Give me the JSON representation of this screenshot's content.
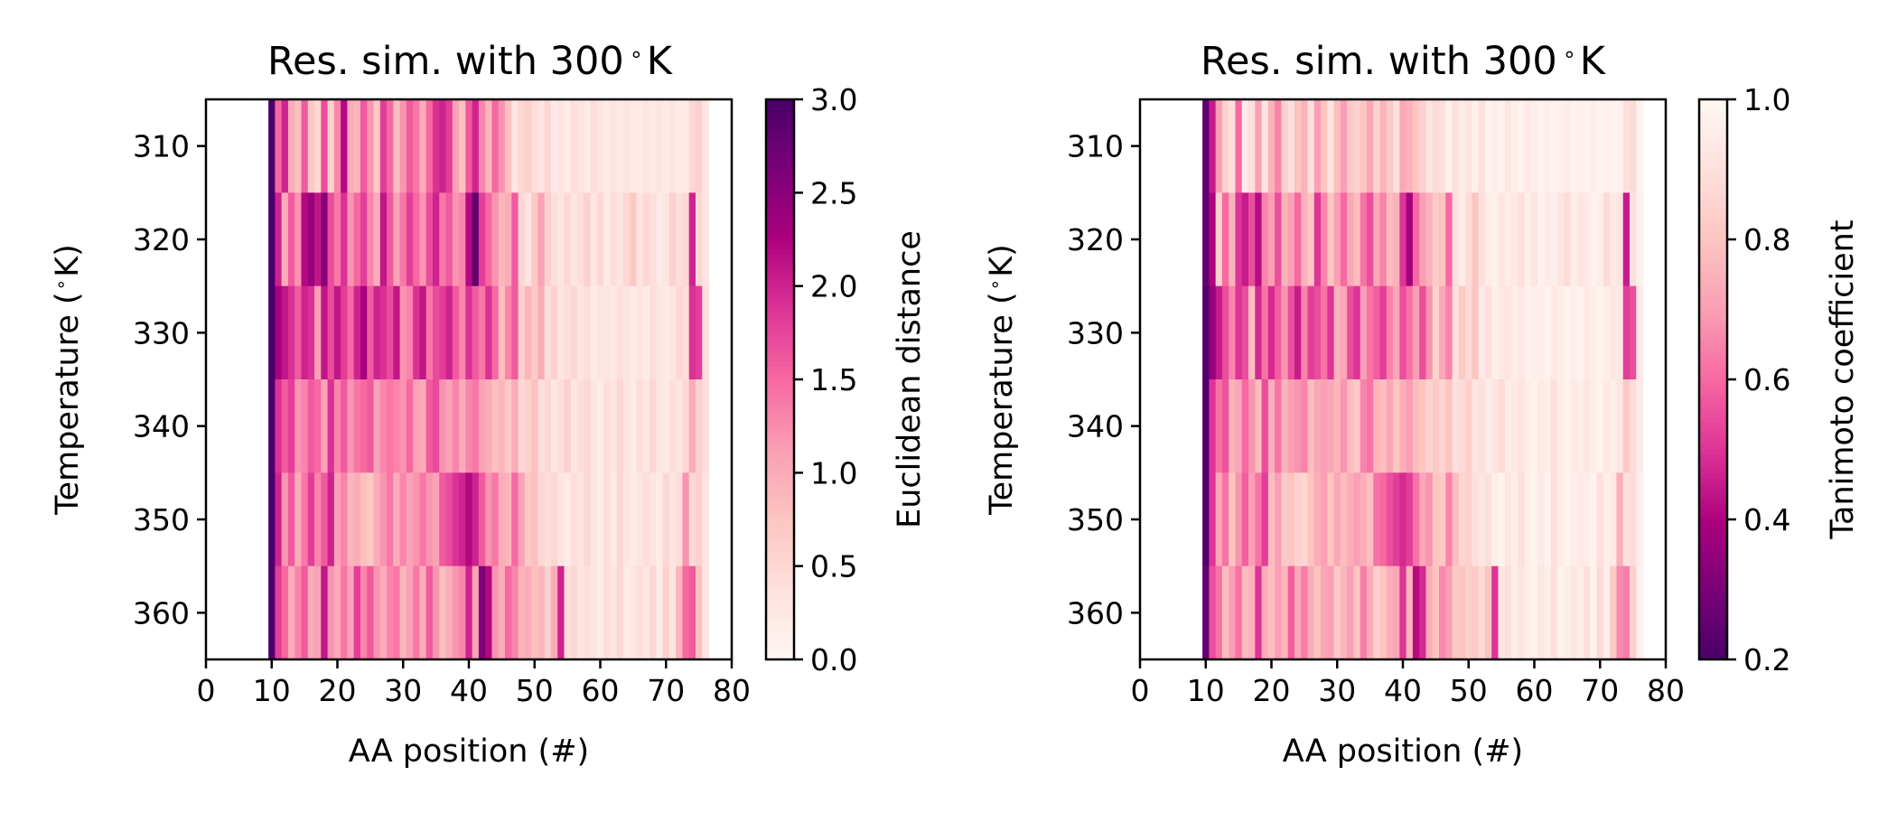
{
  "chart_data": [
    {
      "type": "heatmap",
      "title": "Res. sim. with 300$^\\circ$K",
      "title_text": "Res. sim. with 300",
      "title_unit": "K",
      "xlabel": "AA position (#)",
      "ylabel": "Temperature (",
      "ylabel_unit": "K)",
      "xlim": [
        0,
        80
      ],
      "x_ticks": [
        "0",
        "10",
        "20",
        "30",
        "40",
        "50",
        "60",
        "70",
        "80"
      ],
      "y_ticks": [
        "310",
        "320",
        "330",
        "340",
        "350",
        "360"
      ],
      "temperatures": [
        310,
        320,
        330,
        340,
        350,
        360
      ],
      "x_start": 10,
      "x_end": 76,
      "colorbar": {
        "label": "Euclidean distance",
        "range": [
          0,
          3
        ],
        "ticks": [
          "0.0",
          "0.5",
          "1.0",
          "1.5",
          "2.0",
          "2.5",
          "3.0"
        ],
        "colormap": "RdPu"
      },
      "values": [
        [
          3.0,
          1.5,
          2.0,
          1.0,
          0.8,
          1.6,
          0.7,
          0.5,
          1.7,
          0.6,
          1.3,
          2.2,
          1.0,
          0.9,
          1.6,
          1.2,
          0.7,
          1.8,
          1.5,
          0.8,
          1.2,
          1.6,
          1.4,
          1.0,
          1.5,
          1.9,
          2.0,
          1.8,
          1.1,
          0.8,
          1.6,
          2.0,
          1.3,
          0.9,
          1.5,
          1.2,
          0.8,
          0.3,
          0.5,
          0.6,
          0.4,
          0.3,
          0.5,
          0.2,
          0.3,
          0.2,
          0.4,
          0.3,
          0.2,
          0.4,
          0.3,
          0.2,
          0.3,
          0.2,
          0.3,
          0.2,
          0.2,
          0.3,
          0.2,
          0.3,
          0.2,
          0.3,
          0.2,
          0.2,
          0.5,
          0.6,
          0.3
        ],
        [
          3.0,
          2.0,
          1.0,
          1.6,
          1.2,
          2.2,
          2.4,
          2.1,
          2.5,
          1.7,
          1.4,
          1.9,
          1.2,
          1.5,
          1.8,
          1.3,
          1.0,
          2.1,
          1.6,
          1.1,
          1.4,
          1.8,
          1.5,
          1.2,
          1.7,
          2.0,
          1.4,
          1.6,
          1.2,
          1.3,
          2.2,
          2.8,
          1.8,
          1.5,
          1.2,
          0.9,
          1.0,
          1.6,
          0.5,
          0.3,
          0.7,
          1.1,
          0.6,
          0.4,
          0.3,
          0.5,
          0.3,
          0.4,
          0.6,
          0.3,
          0.5,
          0.2,
          0.4,
          0.3,
          0.5,
          0.7,
          0.3,
          0.5,
          0.4,
          0.2,
          0.3,
          0.6,
          0.4,
          0.5,
          2.0,
          0.5,
          0.3
        ],
        [
          3.0,
          2.3,
          2.1,
          1.9,
          1.6,
          2.0,
          1.9,
          1.1,
          2.1,
          1.7,
          2.1,
          1.8,
          1.5,
          2.0,
          2.3,
          1.6,
          2.0,
          1.9,
          1.7,
          2.1,
          1.2,
          1.3,
          1.9,
          2.1,
          1.4,
          1.7,
          1.8,
          2.0,
          1.6,
          1.3,
          1.9,
          1.6,
          1.4,
          1.9,
          1.5,
          0.8,
          1.3,
          1.6,
          0.6,
          0.9,
          0.7,
          1.0,
          0.4,
          0.6,
          0.3,
          0.4,
          0.5,
          0.3,
          0.4,
          0.2,
          0.3,
          0.3,
          0.2,
          0.4,
          0.3,
          0.2,
          0.3,
          0.2,
          0.4,
          0.3,
          0.2,
          0.3,
          0.5,
          0.4,
          1.9,
          1.8,
          0.4
        ],
        [
          3.0,
          1.9,
          1.6,
          1.8,
          1.2,
          1.3,
          1.6,
          1.5,
          1.1,
          1.9,
          1.3,
          1.6,
          1.2,
          1.4,
          1.5,
          1.6,
          1.1,
          1.3,
          1.4,
          1.3,
          1.2,
          1.5,
          1.1,
          1.0,
          1.6,
          1.7,
          1.2,
          1.1,
          1.3,
          1.0,
          1.3,
          1.4,
          1.1,
          1.0,
          0.8,
          0.9,
          0.7,
          1.0,
          0.5,
          0.6,
          0.8,
          0.4,
          0.5,
          0.3,
          0.4,
          0.6,
          0.3,
          0.4,
          0.5,
          0.3,
          0.2,
          0.4,
          0.3,
          0.5,
          0.3,
          0.2,
          0.4,
          0.3,
          0.5,
          0.3,
          0.2,
          0.4,
          0.3,
          0.5,
          1.0,
          0.6,
          0.4
        ],
        [
          3.0,
          2.0,
          1.2,
          1.6,
          1.0,
          1.4,
          1.8,
          1.3,
          1.6,
          2.0,
          1.1,
          1.3,
          0.9,
          1.0,
          0.8,
          0.7,
          1.0,
          1.2,
          1.4,
          1.0,
          1.3,
          1.1,
          1.2,
          1.4,
          1.2,
          1.1,
          1.6,
          1.7,
          1.9,
          2.0,
          2.2,
          2.0,
          1.6,
          1.2,
          1.4,
          1.0,
          0.9,
          1.5,
          1.1,
          0.7,
          0.8,
          0.5,
          0.4,
          0.5,
          0.3,
          0.2,
          0.4,
          0.3,
          0.5,
          0.3,
          0.2,
          0.4,
          0.2,
          0.5,
          0.3,
          0.2,
          0.3,
          0.4,
          0.3,
          0.2,
          0.5,
          0.3,
          0.4,
          1.2,
          0.5,
          0.6,
          0.3
        ],
        [
          3.0,
          1.8,
          1.5,
          1.0,
          1.3,
          1.6,
          1.0,
          1.1,
          2.1,
          1.2,
          1.0,
          1.4,
          1.1,
          1.8,
          1.3,
          1.6,
          1.2,
          1.0,
          1.3,
          1.4,
          0.9,
          1.1,
          1.4,
          1.0,
          1.6,
          1.2,
          0.8,
          1.0,
          1.2,
          1.3,
          2.0,
          1.1,
          2.6,
          2.2,
          1.2,
          1.0,
          1.5,
          1.3,
          0.9,
          1.0,
          0.8,
          0.9,
          0.6,
          1.0,
          2.0,
          0.4,
          0.5,
          0.3,
          0.4,
          0.3,
          0.2,
          0.4,
          0.3,
          0.5,
          0.2,
          0.3,
          0.4,
          0.3,
          0.5,
          0.2,
          0.6,
          0.3,
          0.9,
          1.5,
          1.6,
          0.8,
          0.3
        ]
      ]
    },
    {
      "type": "heatmap",
      "title": "Res. sim. with 300$^\\circ$K",
      "title_text": "Res. sim. with 300",
      "title_unit": "K",
      "xlabel": "AA position (#)",
      "ylabel": "Temperature (",
      "ylabel_unit": "K)",
      "xlim": [
        0,
        80
      ],
      "x_ticks": [
        "0",
        "10",
        "20",
        "30",
        "40",
        "50",
        "60",
        "70",
        "80"
      ],
      "y_ticks": [
        "310",
        "320",
        "330",
        "340",
        "350",
        "360"
      ],
      "temperatures": [
        310,
        320,
        330,
        340,
        350,
        360
      ],
      "x_start": 10,
      "x_end": 76,
      "colorbar": {
        "label": "Tanimoto coefficient",
        "range": [
          0.2,
          1.0
        ],
        "ticks": [
          "0.2",
          "0.4",
          "0.6",
          "0.8",
          "1.0"
        ],
        "colormap": "RdPu_r"
      },
      "values": [
        [
          0.25,
          0.45,
          0.7,
          0.85,
          0.9,
          0.6,
          0.95,
          0.9,
          0.7,
          0.92,
          0.75,
          0.65,
          0.85,
          0.9,
          0.8,
          0.75,
          0.9,
          0.7,
          0.8,
          0.92,
          0.78,
          0.7,
          0.82,
          0.85,
          0.8,
          0.72,
          0.85,
          0.75,
          0.82,
          0.9,
          0.72,
          0.75,
          0.8,
          0.85,
          0.92,
          0.88,
          0.9,
          0.97,
          0.9,
          0.95,
          0.92,
          0.97,
          0.9,
          0.98,
          0.96,
          0.98,
          0.92,
          0.96,
          0.98,
          0.94,
          0.96,
          0.98,
          0.96,
          0.98,
          0.97,
          0.95,
          0.98,
          0.97,
          0.98,
          0.96,
          0.98,
          0.97,
          0.98,
          0.97,
          0.9,
          0.88,
          0.98
        ],
        [
          0.25,
          0.4,
          0.85,
          0.6,
          0.75,
          0.5,
          0.45,
          0.55,
          0.42,
          0.65,
          0.7,
          0.55,
          0.75,
          0.7,
          0.6,
          0.75,
          0.8,
          0.5,
          0.65,
          0.8,
          0.7,
          0.6,
          0.72,
          0.78,
          0.62,
          0.55,
          0.72,
          0.65,
          0.78,
          0.75,
          0.5,
          0.38,
          0.6,
          0.7,
          0.75,
          0.82,
          0.8,
          0.6,
          0.9,
          0.95,
          0.88,
          0.8,
          0.9,
          0.95,
          0.97,
          0.92,
          0.96,
          0.94,
          0.9,
          0.96,
          0.92,
          0.98,
          0.94,
          0.96,
          0.92,
          0.88,
          0.96,
          0.92,
          0.94,
          0.98,
          0.96,
          0.88,
          0.94,
          0.92,
          0.45,
          0.9,
          0.97
        ],
        [
          0.22,
          0.35,
          0.45,
          0.55,
          0.65,
          0.5,
          0.55,
          0.78,
          0.48,
          0.62,
          0.48,
          0.58,
          0.68,
          0.55,
          0.45,
          0.65,
          0.52,
          0.55,
          0.62,
          0.5,
          0.75,
          0.72,
          0.55,
          0.5,
          0.7,
          0.62,
          0.58,
          0.52,
          0.65,
          0.72,
          0.55,
          0.62,
          0.7,
          0.55,
          0.68,
          0.85,
          0.72,
          0.65,
          0.9,
          0.82,
          0.88,
          0.8,
          0.94,
          0.9,
          0.96,
          0.94,
          0.92,
          0.96,
          0.94,
          0.98,
          0.96,
          0.96,
          0.98,
          0.94,
          0.96,
          0.98,
          0.96,
          0.98,
          0.94,
          0.96,
          0.98,
          0.96,
          0.92,
          0.94,
          0.52,
          0.55,
          0.94
        ],
        [
          0.22,
          0.5,
          0.62,
          0.56,
          0.75,
          0.72,
          0.6,
          0.68,
          0.78,
          0.55,
          0.74,
          0.62,
          0.75,
          0.7,
          0.68,
          0.65,
          0.78,
          0.72,
          0.7,
          0.72,
          0.76,
          0.68,
          0.78,
          0.82,
          0.65,
          0.62,
          0.76,
          0.78,
          0.72,
          0.8,
          0.74,
          0.7,
          0.78,
          0.8,
          0.85,
          0.82,
          0.86,
          0.8,
          0.9,
          0.88,
          0.84,
          0.92,
          0.9,
          0.95,
          0.92,
          0.88,
          0.96,
          0.94,
          0.92,
          0.96,
          0.98,
          0.94,
          0.96,
          0.9,
          0.96,
          0.98,
          0.94,
          0.96,
          0.92,
          0.96,
          0.98,
          0.94,
          0.96,
          0.92,
          0.82,
          0.88,
          0.94
        ],
        [
          0.22,
          0.5,
          0.72,
          0.62,
          0.8,
          0.68,
          0.58,
          0.7,
          0.62,
          0.52,
          0.78,
          0.7,
          0.82,
          0.8,
          0.85,
          0.86,
          0.8,
          0.74,
          0.7,
          0.8,
          0.72,
          0.78,
          0.74,
          0.7,
          0.74,
          0.78,
          0.62,
          0.6,
          0.55,
          0.52,
          0.48,
          0.52,
          0.62,
          0.72,
          0.68,
          0.8,
          0.82,
          0.65,
          0.78,
          0.86,
          0.84,
          0.9,
          0.92,
          0.9,
          0.96,
          0.98,
          0.92,
          0.96,
          0.9,
          0.96,
          0.98,
          0.94,
          0.98,
          0.9,
          0.96,
          0.98,
          0.96,
          0.94,
          0.96,
          0.98,
          0.9,
          0.96,
          0.94,
          0.74,
          0.9,
          0.88,
          0.96
        ],
        [
          0.25,
          0.55,
          0.62,
          0.78,
          0.7,
          0.62,
          0.78,
          0.75,
          0.5,
          0.74,
          0.78,
          0.7,
          0.76,
          0.58,
          0.72,
          0.64,
          0.74,
          0.8,
          0.72,
          0.7,
          0.82,
          0.76,
          0.7,
          0.8,
          0.64,
          0.74,
          0.84,
          0.8,
          0.74,
          0.72,
          0.5,
          0.76,
          0.42,
          0.48,
          0.74,
          0.8,
          0.66,
          0.7,
          0.82,
          0.8,
          0.84,
          0.82,
          0.88,
          0.8,
          0.5,
          0.92,
          0.9,
          0.96,
          0.92,
          0.96,
          0.98,
          0.92,
          0.96,
          0.9,
          0.98,
          0.96,
          0.92,
          0.96,
          0.9,
          0.98,
          0.88,
          0.96,
          0.82,
          0.66,
          0.64,
          0.84,
          0.97
        ]
      ]
    }
  ]
}
